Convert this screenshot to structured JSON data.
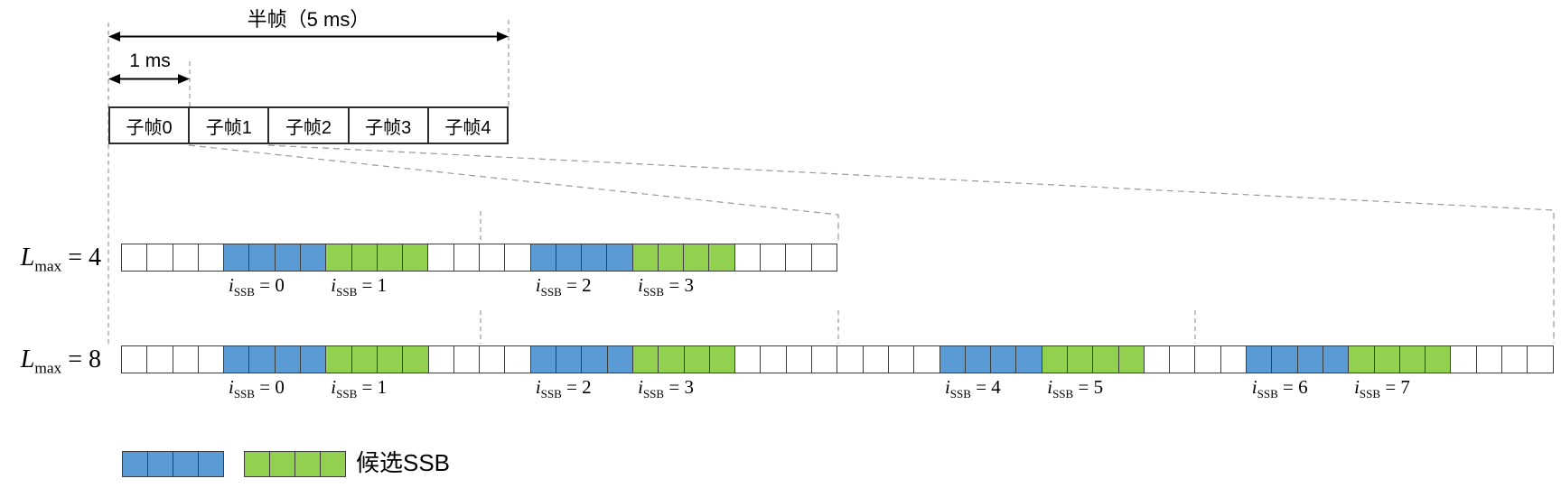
{
  "header": {
    "half_frame_label": "半帧（5 ms）",
    "one_ms_label": "1 ms"
  },
  "subframes": [
    "子帧0",
    "子帧1",
    "子帧2",
    "子帧3",
    "子帧4"
  ],
  "rows": [
    {
      "label": {
        "var": "L",
        "sub": "max",
        "eq": "= 4"
      },
      "num_symbols": 28,
      "blocks": [
        {
          "start": 4,
          "len": 4,
          "color": "blue",
          "label": {
            "var": "i",
            "sub": "SSB",
            "eq": "= 0"
          }
        },
        {
          "start": 8,
          "len": 4,
          "color": "green",
          "label": {
            "var": "i",
            "sub": "SSB",
            "eq": "= 1"
          }
        },
        {
          "start": 16,
          "len": 4,
          "color": "blue",
          "label": {
            "var": "i",
            "sub": "SSB",
            "eq": "= 2"
          }
        },
        {
          "start": 20,
          "len": 4,
          "color": "green",
          "label": {
            "var": "i",
            "sub": "SSB",
            "eq": "= 3"
          }
        }
      ]
    },
    {
      "label": {
        "var": "L",
        "sub": "max",
        "eq": "= 8"
      },
      "num_symbols": 56,
      "blocks": [
        {
          "start": 4,
          "len": 4,
          "color": "blue",
          "label": {
            "var": "i",
            "sub": "SSB",
            "eq": "= 0"
          }
        },
        {
          "start": 8,
          "len": 4,
          "color": "green",
          "label": {
            "var": "i",
            "sub": "SSB",
            "eq": "= 1"
          }
        },
        {
          "start": 16,
          "len": 4,
          "color": "blue",
          "label": {
            "var": "i",
            "sub": "SSB",
            "eq": "= 2"
          }
        },
        {
          "start": 20,
          "len": 4,
          "color": "green",
          "label": {
            "var": "i",
            "sub": "SSB",
            "eq": "= 3"
          }
        },
        {
          "start": 32,
          "len": 4,
          "color": "blue",
          "label": {
            "var": "i",
            "sub": "SSB",
            "eq": "= 4"
          }
        },
        {
          "start": 36,
          "len": 4,
          "color": "green",
          "label": {
            "var": "i",
            "sub": "SSB",
            "eq": "= 5"
          }
        },
        {
          "start": 44,
          "len": 4,
          "color": "blue",
          "label": {
            "var": "i",
            "sub": "SSB",
            "eq": "= 6"
          }
        },
        {
          "start": 48,
          "len": 4,
          "color": "green",
          "label": {
            "var": "i",
            "sub": "SSB",
            "eq": "= 7"
          }
        }
      ]
    }
  ],
  "legend": {
    "label": "候选SSB",
    "swatches": [
      "blue",
      "green"
    ]
  },
  "colors": {
    "blue": "#5B9BD5",
    "green": "#92D050"
  }
}
